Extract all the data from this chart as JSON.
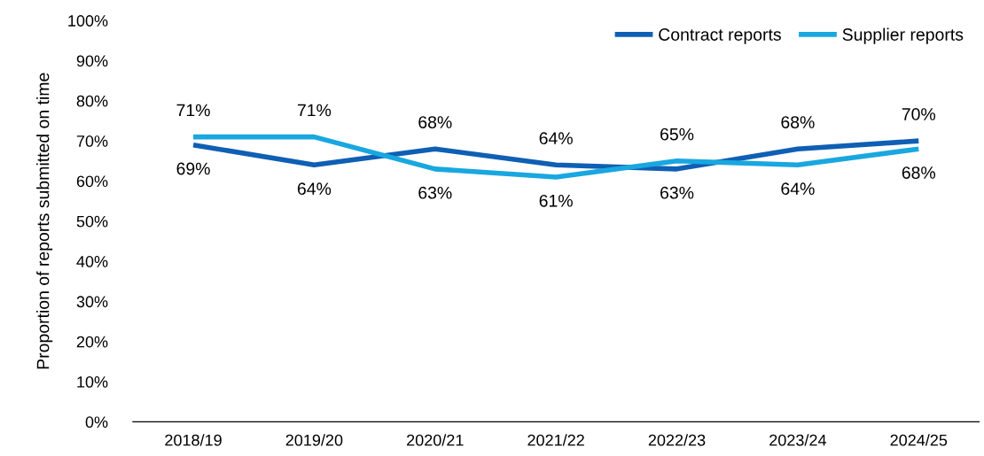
{
  "chart_data": {
    "type": "line",
    "ylabel": "Proportion of reports submitted on time",
    "categories": [
      "2018/19",
      "2019/20",
      "2020/21",
      "2021/22",
      "2022/23",
      "2023/24",
      "2024/25"
    ],
    "series": [
      {
        "name": "Contract reports",
        "color": "#0f5fb4",
        "values": [
          69,
          64,
          68,
          64,
          63,
          68,
          70
        ],
        "value_labels": [
          "69%",
          "64%",
          "68%",
          "64%",
          "63%",
          "68%",
          "70%"
        ]
      },
      {
        "name": "Supplier reports",
        "color": "#19a7e0",
        "values": [
          71,
          71,
          63,
          61,
          65,
          64,
          68
        ],
        "value_labels": [
          "71%",
          "71%",
          "63%",
          "61%",
          "65%",
          "64%",
          "68%"
        ]
      }
    ],
    "ylim": [
      0,
      100
    ],
    "yticks": [
      {
        "value": 0,
        "label": "0%"
      },
      {
        "value": 10,
        "label": "10%"
      },
      {
        "value": 20,
        "label": "20%"
      },
      {
        "value": 30,
        "label": "30%"
      },
      {
        "value": 40,
        "label": "40%"
      },
      {
        "value": 50,
        "label": "50%"
      },
      {
        "value": 60,
        "label": "60%"
      },
      {
        "value": 70,
        "label": "70%"
      },
      {
        "value": 80,
        "label": "80%"
      },
      {
        "value": 90,
        "label": "90%"
      },
      {
        "value": 100,
        "label": "100%"
      }
    ],
    "grid": false,
    "legend": "top right",
    "marker": "none",
    "line_style": "solid"
  }
}
